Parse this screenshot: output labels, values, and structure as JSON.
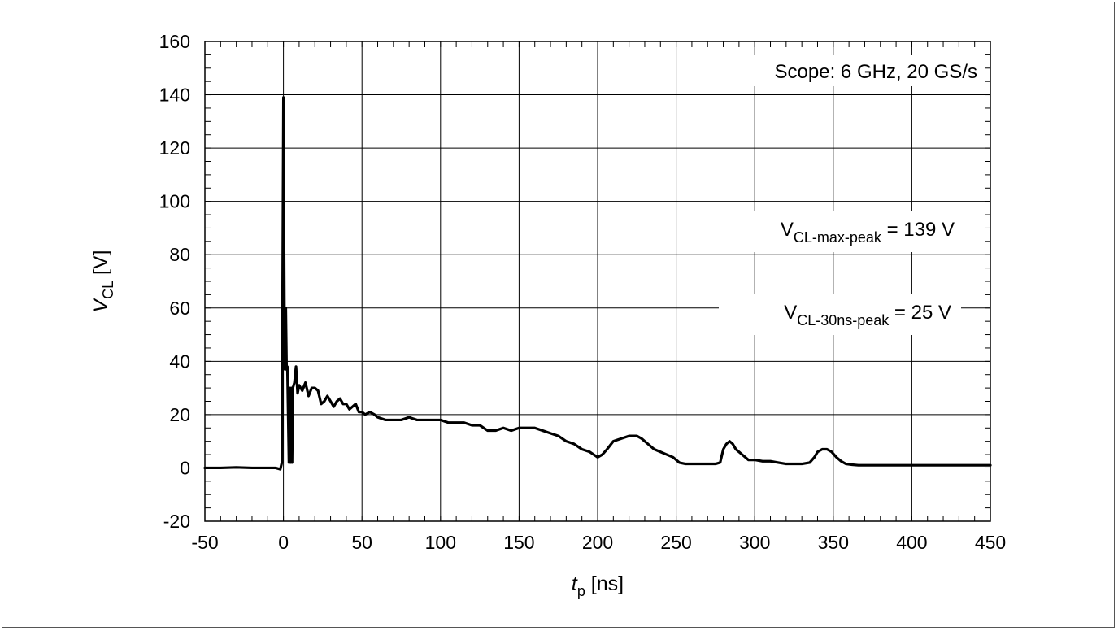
{
  "chart_data": {
    "type": "line",
    "xlabel": {
      "var": "t",
      "sub": "p",
      "unit": " [ns]"
    },
    "ylabel": {
      "var": "V",
      "sub": "CL",
      "unit": " [V]"
    },
    "xlim": [
      -50,
      450
    ],
    "ylim": [
      -20,
      160
    ],
    "xticks": [
      -50,
      0,
      50,
      100,
      150,
      200,
      250,
      300,
      350,
      400,
      450
    ],
    "yticks": [
      -20,
      0,
      20,
      40,
      60,
      80,
      100,
      120,
      140,
      160
    ],
    "grid": true,
    "annotations": [
      {
        "id": "scope",
        "text": "Scope: 6 GHz, 20 GS/s"
      },
      {
        "id": "max-peak",
        "base": "V",
        "sub": "CL-max-peak",
        "rest": " = 139 V"
      },
      {
        "id": "30ns-peak",
        "base": "V",
        "sub": "CL-30ns-peak",
        "rest": " = 25 V"
      }
    ],
    "series": [
      {
        "color": "#000000",
        "x": [
          -50,
          -40,
          -30,
          -20,
          -10,
          -5,
          -2,
          -1,
          0,
          0.3,
          0.6,
          1,
          1.5,
          2,
          2.5,
          3,
          3.5,
          4,
          4.5,
          5,
          5.5,
          6,
          7,
          8,
          9,
          10,
          12,
          14,
          16,
          18,
          20,
          22,
          24,
          26,
          28,
          30,
          32,
          34,
          36,
          38,
          40,
          42,
          44,
          46,
          48,
          50,
          52,
          55,
          58,
          60,
          65,
          70,
          75,
          80,
          85,
          90,
          95,
          100,
          105,
          110,
          115,
          120,
          125,
          130,
          135,
          140,
          145,
          150,
          155,
          160,
          165,
          170,
          175,
          180,
          185,
          190,
          195,
          200,
          203,
          206,
          210,
          215,
          220,
          225,
          228,
          232,
          236,
          240,
          244,
          248,
          252,
          256,
          260,
          265,
          270,
          275,
          278,
          280,
          282,
          284,
          286,
          288,
          292,
          296,
          300,
          305,
          310,
          315,
          320,
          325,
          330,
          335,
          338,
          340,
          343,
          346,
          349,
          352,
          355,
          358,
          362,
          366,
          370,
          380,
          390,
          400,
          410,
          420,
          430,
          440,
          450
        ],
        "y": [
          0,
          0,
          0.2,
          0,
          0,
          0,
          -0.5,
          2,
          139,
          95,
          60,
          37,
          60,
          37,
          38,
          20,
          2,
          30,
          2,
          30,
          2,
          30,
          32,
          38,
          28,
          31,
          29,
          32,
          27,
          30,
          30,
          29,
          24,
          25,
          27,
          25,
          23,
          25,
          26,
          24,
          24,
          22,
          23,
          24,
          21,
          21,
          20,
          21,
          20,
          19,
          18,
          18,
          18,
          19,
          18,
          18,
          18,
          18,
          17,
          17,
          17,
          16,
          16,
          14,
          14,
          15,
          14,
          15,
          15,
          15,
          14,
          13,
          12,
          10,
          9,
          7,
          6,
          4,
          5,
          7,
          10,
          11,
          12,
          12,
          11,
          9,
          7,
          6,
          5,
          4,
          2,
          1.5,
          1.5,
          1.5,
          1.5,
          1.5,
          2,
          7,
          9,
          10,
          9,
          7,
          5,
          3,
          3,
          2.5,
          2.5,
          2,
          1.5,
          1.5,
          1.5,
          2,
          4,
          6,
          7,
          7,
          6,
          4,
          2.5,
          1.5,
          1.2,
          1,
          1,
          1,
          1,
          1,
          1,
          1,
          1,
          1,
          1
        ]
      }
    ]
  }
}
